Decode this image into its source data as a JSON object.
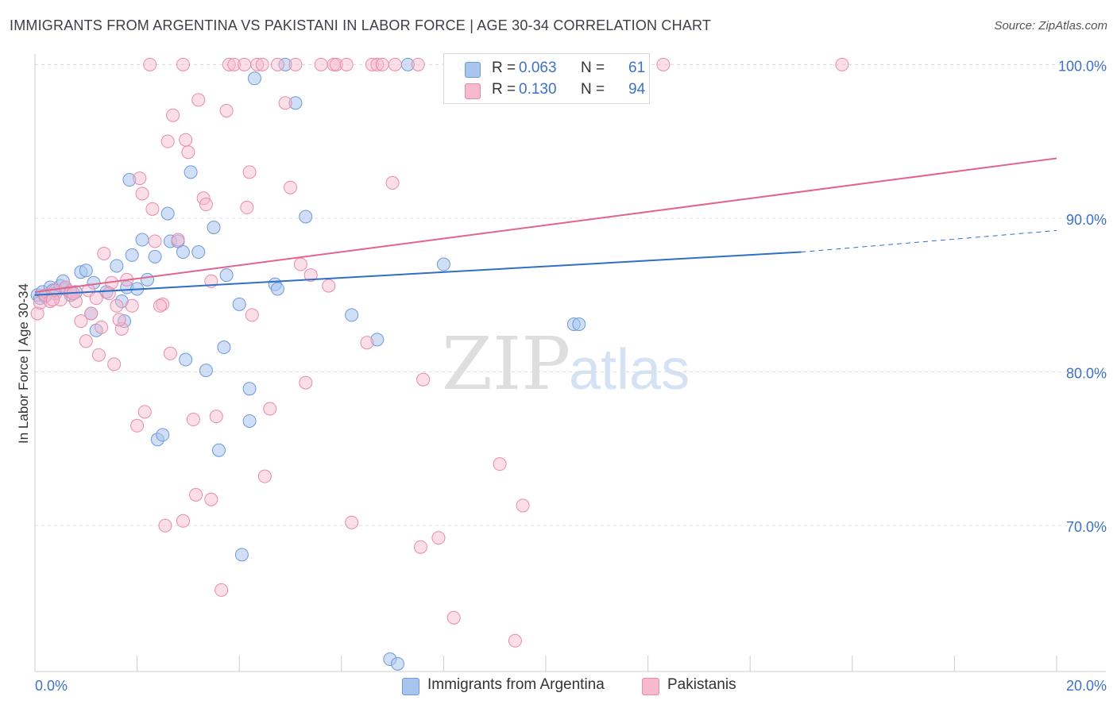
{
  "title": "IMMIGRANTS FROM ARGENTINA VS PAKISTANI IN LABOR FORCE | AGE 30-34 CORRELATION CHART",
  "source": "Source: ZipAtlas.com",
  "watermark": {
    "zip": "ZIP",
    "atlas": "atlas"
  },
  "colors": {
    "argentina_fill": "#a9c5ee",
    "argentina_stroke": "#6d9ad8",
    "argentina_line": "#2f6fc7",
    "pakistani_fill": "#f6b9cd",
    "pakistani_stroke": "#e98aab",
    "pakistani_line": "#e0648e",
    "tick_label": "#3d72c2",
    "grid": "#dcdfe4"
  },
  "legend": {
    "rows": [
      {
        "r_label": "R =",
        "r_value": "0.063",
        "n_label": "N =",
        "n_value": "61"
      },
      {
        "r_label": "R =",
        "r_value": "0.130",
        "n_label": "N =",
        "n_value": "94"
      }
    ]
  },
  "bottom_legend": {
    "argentina": "Immigrants from Argentina",
    "pakistani": "Pakistanis"
  },
  "chart_data": {
    "type": "scatter",
    "xlabel": "",
    "ylabel": "In Labor Force | Age 30-34",
    "xlim": [
      0,
      20
    ],
    "ylim": [
      60.5,
      101
    ],
    "x_ticks": [
      0,
      20
    ],
    "x_tick_labels": [
      "0.0%",
      "20.0%"
    ],
    "y_ticks": [
      70,
      80,
      90,
      100
    ],
    "y_tick_labels": [
      "70.0%",
      "80.0%",
      "90.0%",
      "100.0%"
    ],
    "grid": true,
    "legend_position": "top-center",
    "series": [
      {
        "name": "Immigrants from Argentina",
        "trend": {
          "x_solid": [
            0,
            15
          ],
          "y_solid": [
            85.0,
            87.8
          ],
          "x_dashed": [
            15,
            20
          ],
          "y_dashed": [
            87.8,
            89.2
          ]
        },
        "points": [
          [
            0.05,
            85.0
          ],
          [
            0.1,
            84.8
          ],
          [
            0.15,
            85.2
          ],
          [
            0.2,
            84.9
          ],
          [
            0.3,
            85.5
          ],
          [
            0.35,
            85.3
          ],
          [
            0.4,
            85.1
          ],
          [
            0.5,
            85.6
          ],
          [
            0.6,
            85.4
          ],
          [
            0.7,
            85.0
          ],
          [
            0.8,
            85.2
          ],
          [
            0.9,
            86.5
          ],
          [
            1.0,
            86.6
          ],
          [
            1.1,
            83.8
          ],
          [
            1.2,
            82.7
          ],
          [
            1.4,
            85.2
          ],
          [
            1.6,
            86.9
          ],
          [
            1.7,
            84.6
          ],
          [
            1.75,
            83.3
          ],
          [
            1.8,
            85.5
          ],
          [
            1.85,
            92.5
          ],
          [
            1.9,
            87.6
          ],
          [
            2.0,
            85.4
          ],
          [
            2.1,
            88.6
          ],
          [
            2.2,
            86.0
          ],
          [
            2.35,
            87.5
          ],
          [
            2.4,
            75.6
          ],
          [
            2.5,
            75.9
          ],
          [
            2.6,
            90.3
          ],
          [
            2.65,
            88.5
          ],
          [
            2.8,
            88.5
          ],
          [
            2.9,
            87.8
          ],
          [
            2.95,
            80.8
          ],
          [
            3.05,
            93.0
          ],
          [
            3.2,
            87.8
          ],
          [
            3.35,
            80.1
          ],
          [
            3.5,
            89.4
          ],
          [
            3.6,
            74.9
          ],
          [
            3.7,
            81.6
          ],
          [
            3.75,
            86.3
          ],
          [
            4.0,
            84.4
          ],
          [
            4.2,
            76.8
          ],
          [
            4.3,
            99.1
          ],
          [
            4.7,
            85.7
          ],
          [
            4.75,
            85.4
          ],
          [
            4.9,
            100.0
          ],
          [
            5.1,
            97.5
          ],
          [
            5.3,
            90.1
          ],
          [
            6.2,
            83.7
          ],
          [
            6.7,
            82.1
          ],
          [
            6.95,
            61.3
          ],
          [
            7.1,
            61.0
          ],
          [
            7.3,
            100.0
          ],
          [
            8.0,
            87.0
          ],
          [
            10.55,
            83.1
          ],
          [
            10.65,
            83.1
          ],
          [
            8.4,
            100.0
          ],
          [
            4.05,
            68.1
          ],
          [
            4.2,
            78.9
          ],
          [
            1.15,
            85.8
          ],
          [
            0.55,
            85.9
          ]
        ]
      },
      {
        "name": "Pakistanis",
        "trend": {
          "x_solid": [
            0,
            20
          ],
          "y_solid": [
            85.2,
            93.9
          ]
        },
        "points": [
          [
            0.05,
            83.8
          ],
          [
            0.1,
            84.5
          ],
          [
            0.2,
            85.0
          ],
          [
            0.3,
            84.6
          ],
          [
            0.4,
            85.3
          ],
          [
            0.5,
            84.7
          ],
          [
            0.6,
            85.5
          ],
          [
            0.7,
            85.2
          ],
          [
            0.8,
            84.6
          ],
          [
            0.9,
            83.3
          ],
          [
            1.0,
            82.0
          ],
          [
            1.05,
            85.3
          ],
          [
            1.1,
            83.8
          ],
          [
            1.25,
            81.1
          ],
          [
            1.3,
            82.9
          ],
          [
            1.35,
            87.7
          ],
          [
            1.5,
            85.8
          ],
          [
            1.55,
            80.5
          ],
          [
            1.6,
            84.3
          ],
          [
            1.7,
            82.8
          ],
          [
            1.8,
            86.0
          ],
          [
            1.9,
            84.3
          ],
          [
            2.0,
            76.5
          ],
          [
            2.05,
            92.6
          ],
          [
            2.1,
            91.6
          ],
          [
            2.15,
            77.4
          ],
          [
            2.3,
            90.6
          ],
          [
            2.35,
            88.5
          ],
          [
            2.5,
            84.4
          ],
          [
            2.55,
            70.0
          ],
          [
            2.6,
            95.0
          ],
          [
            2.65,
            81.2
          ],
          [
            2.7,
            96.7
          ],
          [
            2.8,
            88.6
          ],
          [
            2.9,
            70.3
          ],
          [
            2.95,
            95.1
          ],
          [
            3.0,
            94.3
          ],
          [
            3.1,
            76.9
          ],
          [
            3.15,
            72.0
          ],
          [
            3.3,
            91.3
          ],
          [
            3.35,
            90.9
          ],
          [
            3.45,
            71.7
          ],
          [
            3.55,
            77.1
          ],
          [
            3.65,
            65.8
          ],
          [
            3.75,
            97.0
          ],
          [
            3.8,
            100.0
          ],
          [
            3.9,
            100.0
          ],
          [
            4.1,
            100.0
          ],
          [
            4.15,
            90.7
          ],
          [
            4.2,
            93.0
          ],
          [
            4.25,
            83.7
          ],
          [
            4.35,
            100.0
          ],
          [
            4.5,
            73.2
          ],
          [
            4.6,
            77.6
          ],
          [
            4.75,
            100.0
          ],
          [
            4.9,
            97.5
          ],
          [
            5.0,
            92.0
          ],
          [
            5.1,
            100.0
          ],
          [
            5.2,
            87.0
          ],
          [
            5.3,
            79.3
          ],
          [
            5.4,
            86.3
          ],
          [
            5.6,
            100.0
          ],
          [
            5.85,
            100.0
          ],
          [
            5.9,
            100.0
          ],
          [
            6.2,
            70.2
          ],
          [
            6.5,
            81.9
          ],
          [
            6.6,
            100.0
          ],
          [
            6.7,
            100.0
          ],
          [
            6.8,
            100.0
          ],
          [
            7.0,
            92.3
          ],
          [
            7.05,
            100.0
          ],
          [
            7.5,
            100.0
          ],
          [
            7.55,
            68.6
          ],
          [
            7.6,
            79.5
          ],
          [
            7.9,
            69.2
          ],
          [
            8.2,
            64.0
          ],
          [
            9.1,
            74.0
          ],
          [
            9.4,
            62.5
          ],
          [
            9.55,
            71.3
          ],
          [
            12.3,
            100.0
          ],
          [
            15.8,
            100.0
          ],
          [
            2.25,
            100.0
          ],
          [
            2.9,
            100.0
          ],
          [
            3.45,
            85.9
          ],
          [
            1.2,
            84.8
          ],
          [
            1.45,
            85.1
          ],
          [
            0.75,
            85.1
          ],
          [
            0.35,
            84.7
          ],
          [
            2.45,
            84.3
          ],
          [
            1.65,
            83.4
          ],
          [
            4.45,
            100.0
          ],
          [
            5.75,
            85.6
          ],
          [
            6.1,
            100.0
          ],
          [
            3.2,
            97.7
          ]
        ]
      }
    ]
  }
}
